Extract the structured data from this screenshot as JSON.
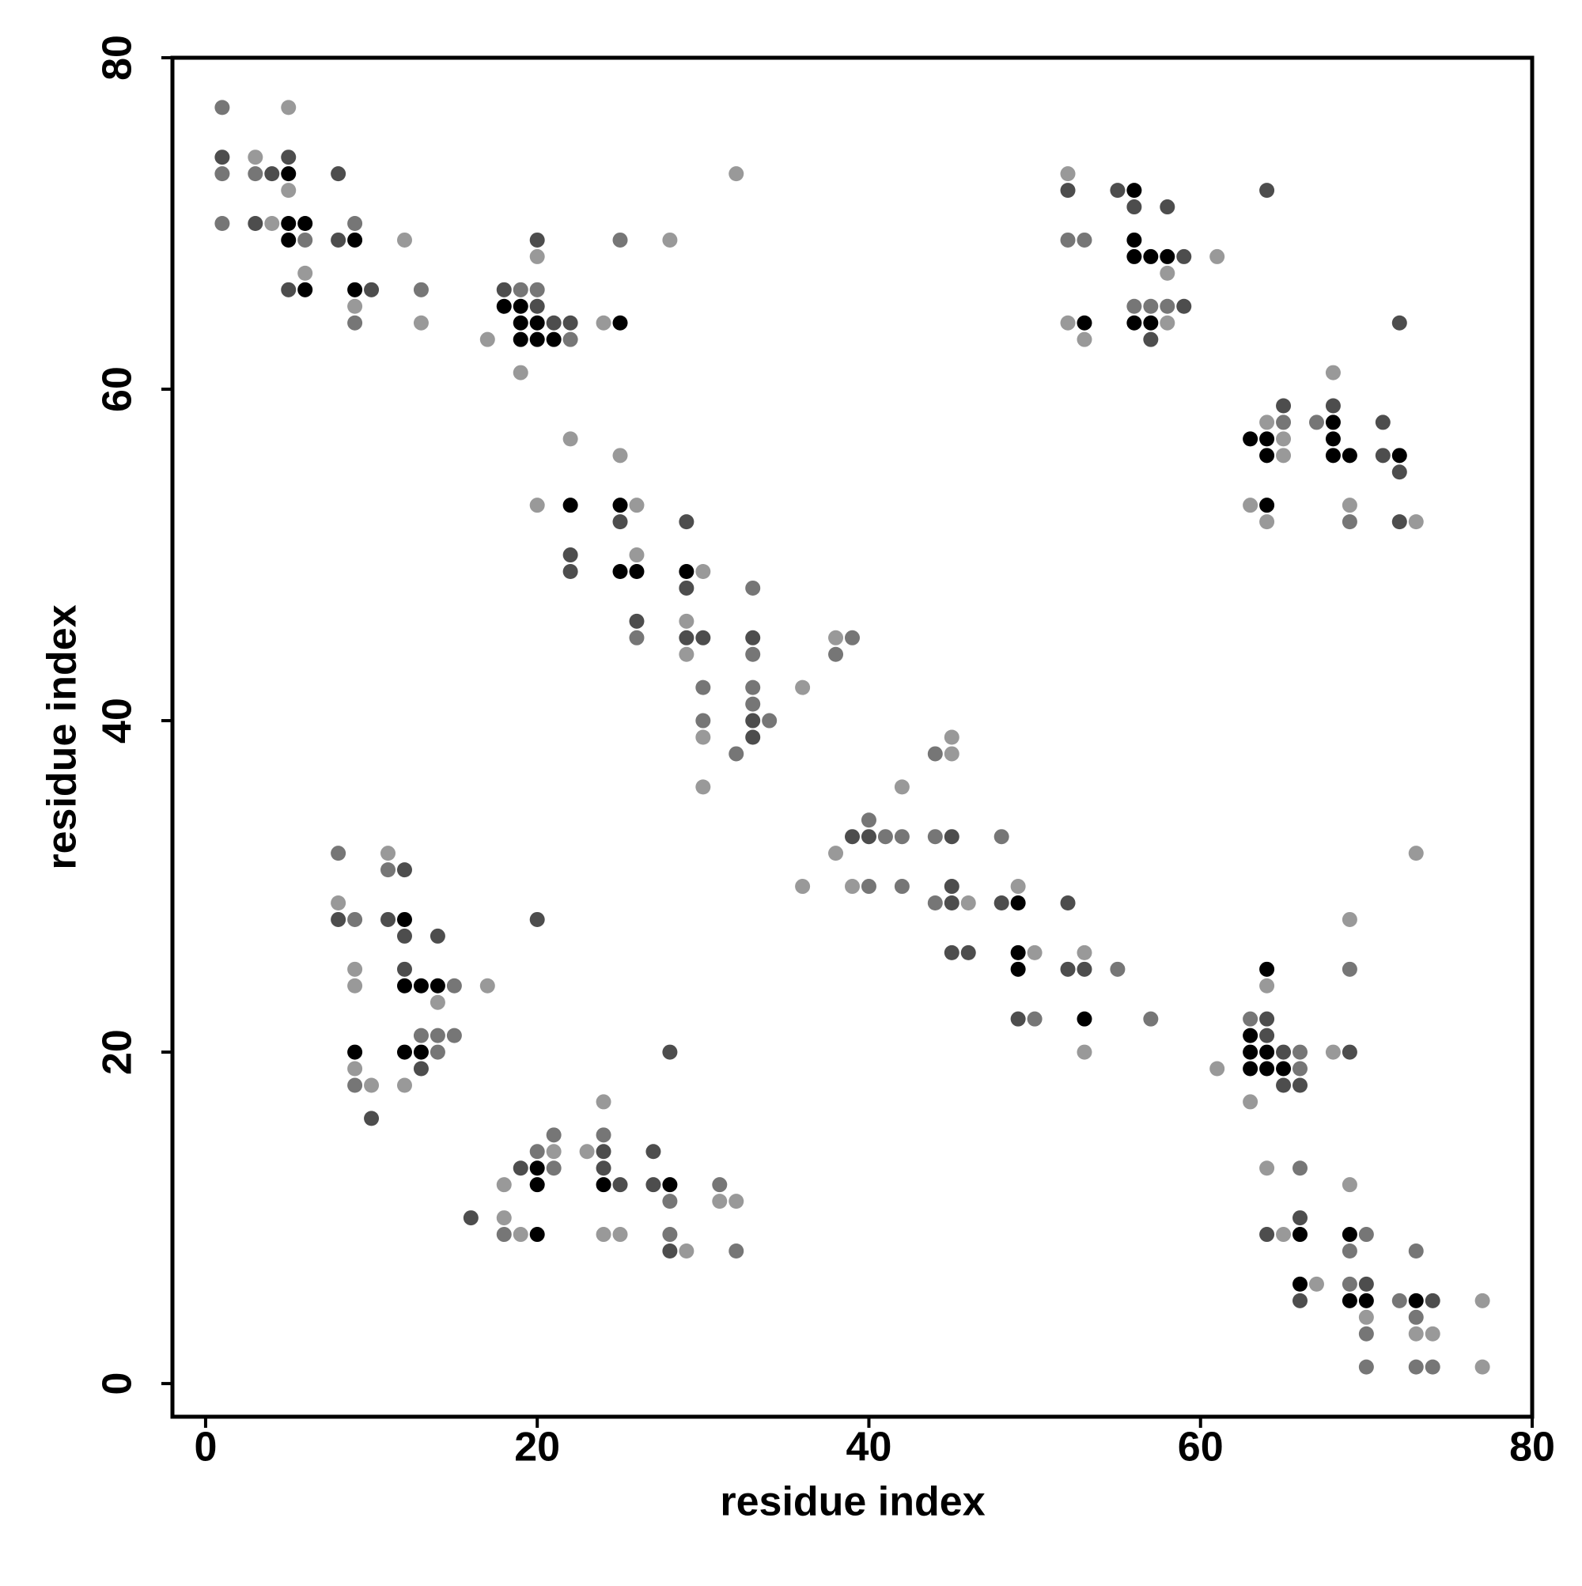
{
  "chart_data": {
    "type": "scatter",
    "xlabel": "residue index",
    "ylabel": "residue index",
    "xlim": [
      -2,
      80
    ],
    "ylim": [
      -2,
      80
    ],
    "xticks": [
      0,
      20,
      40,
      60,
      80
    ],
    "yticks": [
      0,
      20,
      40,
      60,
      80
    ],
    "grid": false,
    "series": [
      {
        "color": "#000000",
        "x": [
          5,
          5,
          6,
          5,
          9,
          6,
          9,
          18,
          19,
          19,
          20,
          25,
          19,
          20,
          21,
          22,
          25,
          25,
          26,
          29,
          49,
          49,
          49,
          53,
          56,
          56,
          56,
          57,
          58,
          53,
          56,
          57,
          68,
          63,
          64,
          68,
          64,
          68,
          69,
          72,
          64,
          12,
          12,
          13,
          14,
          9,
          12,
          13,
          20,
          20,
          24,
          28,
          20,
          64,
          63,
          63,
          64,
          63,
          64,
          65,
          66,
          69,
          66,
          69,
          70,
          73
        ],
        "values": [
          73,
          70,
          70,
          69,
          69,
          66,
          66,
          65,
          65,
          64,
          64,
          64,
          63,
          63,
          63,
          53,
          53,
          49,
          49,
          49,
          29,
          26,
          25,
          22,
          72,
          69,
          68,
          68,
          68,
          64,
          64,
          64,
          58,
          57,
          57,
          57,
          56,
          56,
          56,
          56,
          53,
          28,
          24,
          24,
          24,
          20,
          20,
          20,
          13,
          12,
          12,
          12,
          9,
          25,
          21,
          20,
          20,
          19,
          19,
          19,
          9,
          9,
          6,
          5,
          5,
          5
        ]
      },
      {
        "color": "#4d4d4d",
        "x": [
          1,
          5,
          4,
          8,
          3,
          8,
          5,
          10,
          20,
          18,
          20,
          21,
          22,
          25,
          29,
          22,
          22,
          29,
          26,
          29,
          30,
          33,
          33,
          33,
          39,
          40,
          45,
          45,
          45,
          48,
          52,
          45,
          46,
          52,
          53,
          49,
          52,
          55,
          64,
          56,
          58,
          59,
          59,
          72,
          57,
          65,
          68,
          71,
          71,
          72,
          72,
          12,
          8,
          11,
          20,
          12,
          14,
          12,
          28,
          13,
          10,
          24,
          27,
          19,
          24,
          25,
          27,
          16,
          28,
          64,
          64,
          65,
          69,
          65,
          66,
          66,
          64,
          70,
          66,
          74
        ],
        "values": [
          74,
          74,
          73,
          73,
          70,
          69,
          66,
          66,
          69,
          66,
          65,
          64,
          64,
          52,
          52,
          50,
          49,
          48,
          46,
          45,
          45,
          45,
          40,
          39,
          33,
          33,
          33,
          30,
          29,
          29,
          29,
          26,
          26,
          25,
          25,
          22,
          72,
          72,
          72,
          71,
          71,
          68,
          65,
          64,
          63,
          59,
          59,
          58,
          56,
          55,
          52,
          31,
          28,
          28,
          28,
          27,
          27,
          25,
          20,
          19,
          16,
          14,
          14,
          13,
          13,
          12,
          12,
          10,
          8,
          22,
          21,
          20,
          20,
          18,
          18,
          10,
          9,
          6,
          5,
          5
        ]
      },
      {
        "color": "#767676",
        "x": [
          1,
          1,
          3,
          1,
          9,
          6,
          13,
          9,
          25,
          19,
          20,
          22,
          33,
          26,
          39,
          33,
          38,
          30,
          33,
          33,
          30,
          34,
          32,
          44,
          40,
          41,
          42,
          44,
          48,
          40,
          42,
          44,
          55,
          50,
          57,
          52,
          53,
          56,
          57,
          58,
          65,
          67,
          69,
          8,
          11,
          9,
          15,
          13,
          14,
          15,
          14,
          9,
          21,
          24,
          20,
          21,
          31,
          28,
          18,
          28,
          32,
          69,
          63,
          66,
          66,
          66,
          70,
          69,
          69,
          72,
          73,
          70,
          70,
          73,
          74,
          73
        ],
        "values": [
          77,
          73,
          73,
          70,
          70,
          69,
          66,
          64,
          69,
          66,
          66,
          63,
          48,
          45,
          45,
          44,
          44,
          42,
          42,
          41,
          40,
          40,
          38,
          38,
          34,
          33,
          33,
          33,
          33,
          30,
          30,
          29,
          25,
          22,
          22,
          69,
          69,
          65,
          65,
          65,
          58,
          58,
          52,
          32,
          31,
          28,
          24,
          21,
          21,
          21,
          20,
          18,
          15,
          15,
          14,
          13,
          12,
          11,
          9,
          9,
          8,
          25,
          22,
          20,
          19,
          13,
          9,
          8,
          6,
          5,
          4,
          3,
          1,
          1,
          1,
          8
        ]
      },
      {
        "color": "#999999",
        "x": [
          5,
          3,
          5,
          4,
          12,
          6,
          9,
          13,
          28,
          32,
          20,
          24,
          17,
          19,
          22,
          25,
          20,
          26,
          26,
          30,
          29,
          38,
          29,
          36,
          30,
          30,
          45,
          45,
          42,
          38,
          36,
          39,
          49,
          46,
          50,
          53,
          53,
          52,
          61,
          58,
          52,
          58,
          53,
          68,
          64,
          65,
          65,
          63,
          69,
          64,
          73,
          11,
          8,
          9,
          9,
          17,
          14,
          9,
          10,
          12,
          24,
          21,
          23,
          18,
          31,
          32,
          18,
          19,
          24,
          25,
          29,
          73,
          69,
          64,
          68,
          61,
          63,
          64,
          69,
          65,
          67,
          77,
          70,
          73,
          74,
          77
        ],
        "values": [
          77,
          74,
          72,
          70,
          69,
          67,
          65,
          64,
          69,
          73,
          68,
          64,
          63,
          61,
          57,
          56,
          53,
          53,
          50,
          49,
          46,
          45,
          44,
          42,
          39,
          36,
          38,
          39,
          36,
          32,
          30,
          30,
          30,
          29,
          26,
          26,
          20,
          73,
          68,
          67,
          64,
          64,
          63,
          61,
          58,
          57,
          56,
          53,
          53,
          52,
          52,
          32,
          29,
          25,
          24,
          24,
          23,
          19,
          18,
          18,
          17,
          14,
          14,
          12,
          11,
          11,
          10,
          9,
          9,
          9,
          8,
          32,
          28,
          24,
          20,
          19,
          17,
          13,
          12,
          9,
          6,
          5,
          4,
          3,
          3,
          1
        ]
      }
    ]
  }
}
